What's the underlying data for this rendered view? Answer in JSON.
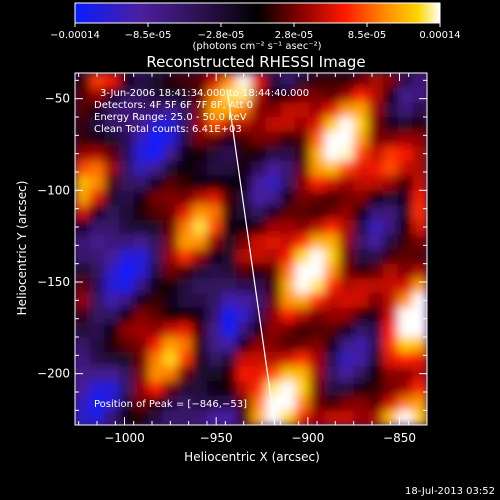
{
  "chart_data": {
    "type": "heatmap",
    "title": "Reconstructed RHESSI Image",
    "xlabel": "Heliocentric X (arcsec)",
    "ylabel": "Heliocentric Y (arcsec)",
    "xlim": [
      -1027,
      -835
    ],
    "ylim": [
      -228,
      -36
    ],
    "x_ticks": [
      -1000,
      -950,
      -900,
      -850
    ],
    "y_ticks": [
      -200,
      -150,
      -100,
      -50
    ],
    "x_tick_labels": [
      "−1000",
      "−950",
      "−900",
      "−850"
    ],
    "y_tick_labels": [
      "−200",
      "−150",
      "−100",
      "−50"
    ],
    "colorbar": {
      "min": -0.00014,
      "max": 0.00014,
      "tick_labels": [
        "−0.00014",
        "−8.5e-05",
        "−2.8e-05",
        "2.8e-05",
        "8.5e-05",
        "0.00014"
      ],
      "unit_label": "(photons cm⁻² s⁻¹ asec⁻²)",
      "colors": [
        "#0a1cff",
        "#4b1f9e",
        "#2a0f48",
        "#000000",
        "#8a0000",
        "#ff1a00",
        "#ff8c00",
        "#ffd400",
        "#ffffff"
      ]
    },
    "limb_line": [
      [
        -944,
        -45
      ],
      [
        -918,
        -228
      ]
    ],
    "peak": [
      -846,
      -53
    ]
  },
  "annotations": {
    "time_range": "3-Jun-2006 18:41:34.000 to 18:44:40.000",
    "detectors": "Detectors: 4F 5F 6F 7F 8F, Att 0",
    "energy": "Energy Range: 25.0 - 50.0 keV",
    "clean": "Clean    Total counts: 6.41E+03",
    "peak_text": "Position of Peak = [−846,−53]"
  },
  "footer": {
    "timestamp": "18-Jul-2013 03:52"
  }
}
